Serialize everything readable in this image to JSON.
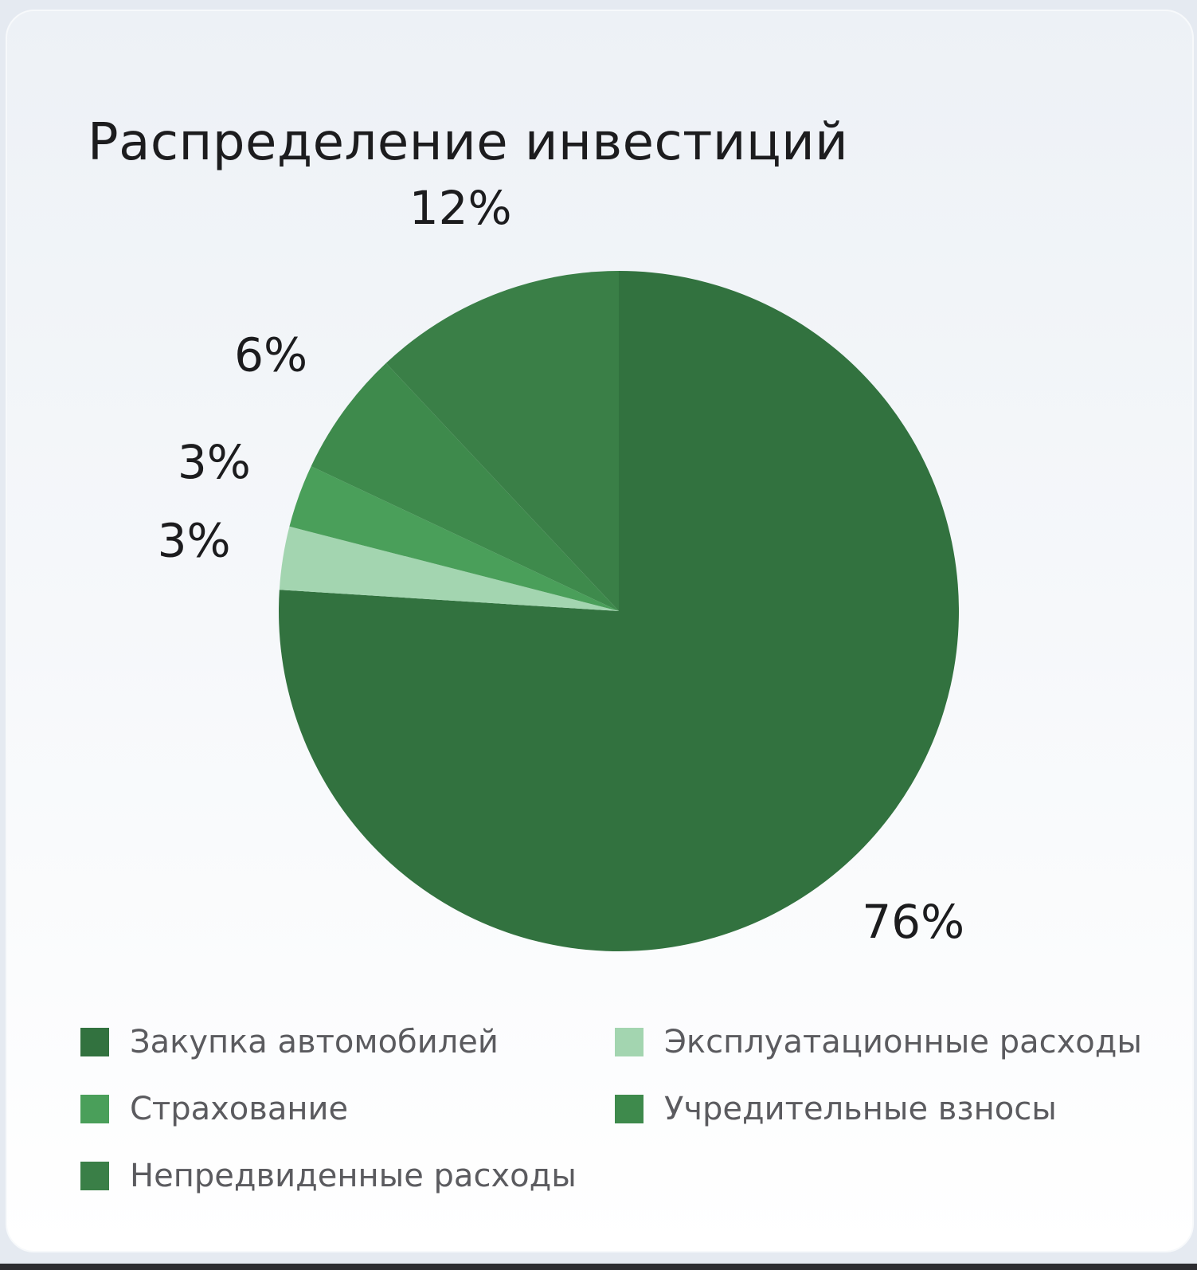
{
  "title": "Распределение инвестиций",
  "chart_data": {
    "type": "pie",
    "title": "Распределение инвестиций",
    "start": "12 o'clock",
    "direction": "clockwise",
    "slices": [
      {
        "label": "Закупка автомобилей",
        "value": 76,
        "display": "76%",
        "color": "#32723f"
      },
      {
        "label": "Эксплуатационные расходы",
        "value": 3,
        "display": "3%",
        "color": "#a3d5b0"
      },
      {
        "label": "Страхование",
        "value": 3,
        "display": "3%",
        "color": "#4a9f5a"
      },
      {
        "label": "Учредительные взносы",
        "value": 6,
        "display": "6%",
        "color": "#3e8a4c"
      },
      {
        "label": "Непредвиденные расходы",
        "value": 12,
        "display": "12%",
        "color": "#3a7f47"
      }
    ],
    "legend_position": "bottom"
  },
  "legend": [
    {
      "label": "Закупка автомобилей",
      "color": "#32723f"
    },
    {
      "label": "Эксплуатационные расходы",
      "color": "#a3d5b0"
    },
    {
      "label": "Страхование",
      "color": "#4a9f5a"
    },
    {
      "label": "Учредительные взносы",
      "color": "#3e8a4c"
    },
    {
      "label": "Непредвиденные расходы",
      "color": "#3a7f47"
    }
  ]
}
